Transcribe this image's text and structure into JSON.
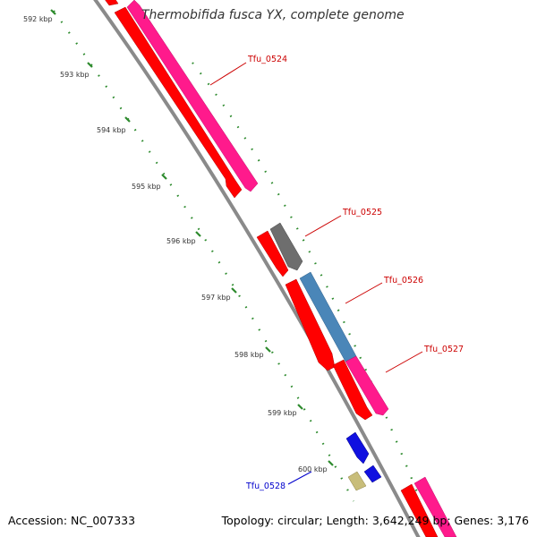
{
  "title": "Thermobifida fusca YX, complete genome",
  "accession": "Accession: NC_007333",
  "topology": "Topology: circular; Length: 3,642,249 bp; Genes: 3,176",
  "colors": {
    "backbone": "#8a8a8a",
    "tick": "#2e8b2e",
    "label_plus": "#cc0000",
    "label_minus": "#0000cc"
  },
  "ruler": {
    "ticks": [
      "592 kbp",
      "593 kbp",
      "594 kbp",
      "595 kbp",
      "596 kbp",
      "597 kbp",
      "598 kbp",
      "599 kbp",
      "600 kbp"
    ]
  },
  "genes": [
    {
      "label": "Tfu_0524",
      "color": "#ff1a8c",
      "strand": "outer"
    },
    {
      "label": "Tfu_0525",
      "color": "#6e6e6e",
      "strand": "outer"
    },
    {
      "label": "Tfu_0526",
      "color": "#4a86b8",
      "strand": "outer"
    },
    {
      "label": "Tfu_0527",
      "color": "#ff1a8c",
      "strand": "outer"
    },
    {
      "label": "Tfu_0528",
      "color": "#1010e0",
      "strand": "inner"
    }
  ]
}
